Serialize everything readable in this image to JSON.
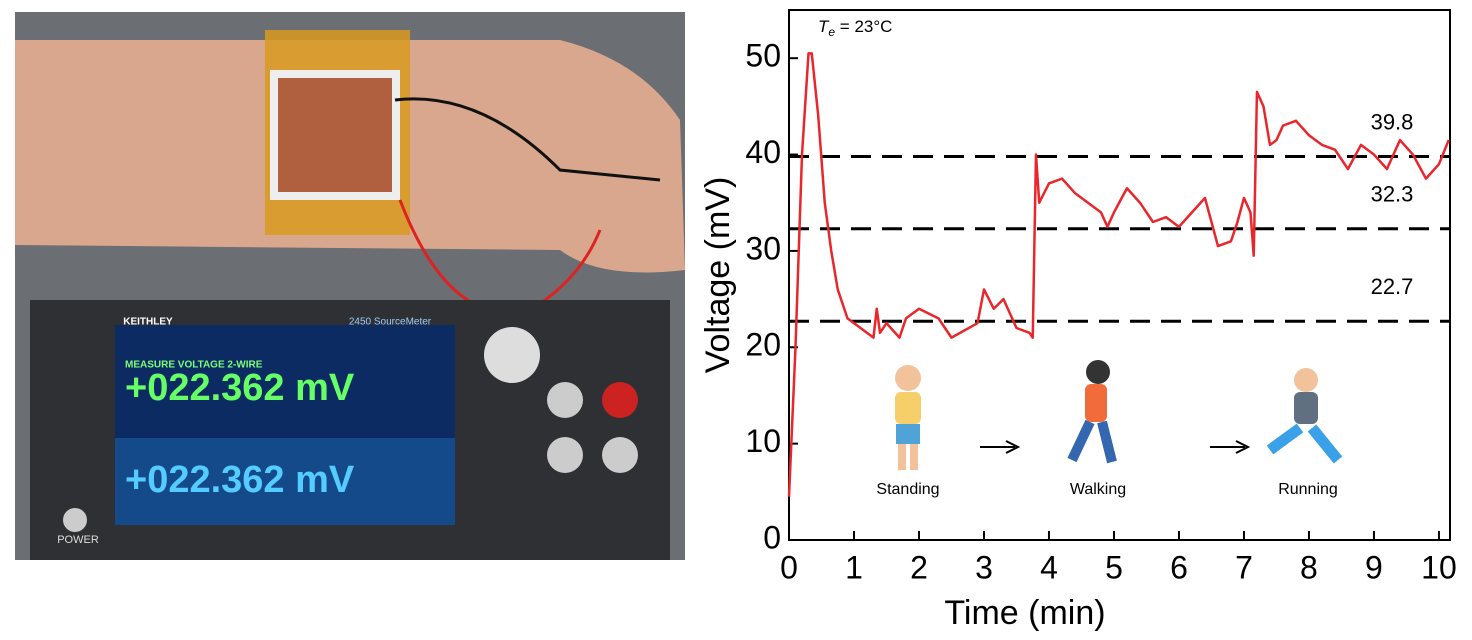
{
  "photo": {
    "brand": "KEITHLEY",
    "model": "2450 SourceMeter",
    "measure_label": "MEASURE VOLTAGE 2-WIRE",
    "reading": "+022.362 mV",
    "source_reading": "+022.362 mV",
    "power": "POWER"
  },
  "chart_data": {
    "type": "line",
    "xlabel": "Time (min)",
    "ylabel": "Voltage (mV)",
    "annotation_symbol": "T",
    "annotation_subscript": "e",
    "annotation_text": " = 23°C",
    "activities": [
      "Standing",
      "Walking",
      "Running"
    ],
    "xlim": [
      0,
      10.17
    ],
    "ylim": [
      0,
      55
    ],
    "xticks": [
      0,
      1,
      2,
      3,
      4,
      5,
      6,
      7,
      8,
      9,
      10
    ],
    "yticks": [
      0,
      10,
      20,
      30,
      40,
      50
    ],
    "hlines": [
      {
        "value": 39.8
      },
      {
        "value": 32.3
      },
      {
        "value": 22.7
      }
    ],
    "x": [
      0,
      0.1,
      0.2,
      0.3,
      0.35,
      0.45,
      0.55,
      0.65,
      0.75,
      0.9,
      1.1,
      1.3,
      1.35,
      1.4,
      1.5,
      1.7,
      1.8,
      2.0,
      2.3,
      2.5,
      2.9,
      3.0,
      3.15,
      3.3,
      3.5,
      3.7,
      3.75,
      3.8,
      3.85,
      4.0,
      4.2,
      4.4,
      4.6,
      4.8,
      4.9,
      5.0,
      5.2,
      5.4,
      5.6,
      5.8,
      6.0,
      6.2,
      6.4,
      6.5,
      6.6,
      6.8,
      6.9,
      7.0,
      7.1,
      7.15,
      7.2,
      7.3,
      7.4,
      7.5,
      7.6,
      7.8,
      8.0,
      8.2,
      8.4,
      8.6,
      8.8,
      9.0,
      9.2,
      9.4,
      9.6,
      9.8,
      10.0,
      10.15
    ],
    "series": [
      {
        "color": "#e8262b",
        "values": [
          4.5,
          20,
          40,
          50.5,
          50.5,
          44,
          35,
          30,
          26,
          23,
          22,
          21,
          24,
          21.5,
          22.5,
          21,
          23,
          24,
          23,
          21,
          22.5,
          26,
          24,
          25,
          22,
          21.5,
          21,
          40,
          35,
          37,
          37.5,
          36,
          35,
          34,
          32.5,
          34,
          36.5,
          35,
          33,
          33.5,
          32.5,
          34,
          35.5,
          33,
          30.5,
          31,
          33,
          35.5,
          34,
          29.5,
          46.5,
          45,
          41,
          41.5,
          43,
          43.5,
          42,
          41,
          40.5,
          38.5,
          41,
          40,
          38.5,
          41.5,
          40,
          37.5,
          39,
          41.5
        ]
      }
    ]
  }
}
